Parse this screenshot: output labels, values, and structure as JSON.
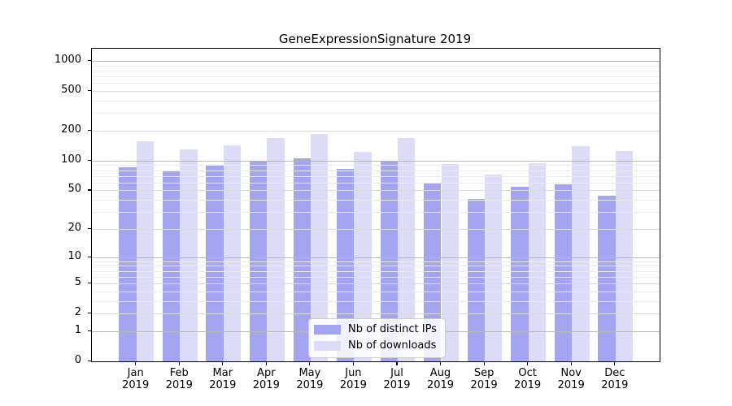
{
  "title": "GeneExpressionSignature 2019",
  "chart_data": {
    "type": "bar",
    "title": "GeneExpressionSignature 2019",
    "categories": [
      "Jan",
      "Feb",
      "Mar",
      "Apr",
      "May",
      "Jun",
      "Jul",
      "Aug",
      "Sep",
      "Oct",
      "Nov",
      "Dec"
    ],
    "category_sublabel": "2019",
    "series": [
      {
        "name": "Nb of distinct IPs",
        "color": "#a4a4f0",
        "values": [
          86,
          80,
          90,
          100,
          105,
          83,
          100,
          60,
          41,
          54,
          58,
          44
        ]
      },
      {
        "name": "Nb of downloads",
        "color": "#dcdcf8",
        "values": [
          156,
          130,
          142,
          170,
          185,
          123,
          170,
          93,
          72,
          95,
          140,
          124
        ]
      }
    ],
    "xlabel": "",
    "ylabel": "",
    "y_scale": "log1p",
    "ylim": [
      0,
      1320
    ],
    "y_ticks": [
      0,
      1,
      2,
      5,
      10,
      20,
      50,
      100,
      200,
      500,
      1000
    ],
    "grid": {
      "major_lines": [
        1,
        10,
        100,
        1000
      ],
      "mid_lines": [
        2,
        5,
        20,
        50,
        200,
        500
      ],
      "minor_lines": [
        3,
        4,
        6,
        7,
        8,
        9,
        30,
        40,
        60,
        70,
        80,
        90,
        300,
        400,
        600,
        700,
        800,
        900
      ]
    },
    "legend_position": "lower center inside",
    "axis_color": "#000000",
    "gridline_major_color": "#b8b8b8",
    "gridline_minor_color": "#ebebeb"
  }
}
